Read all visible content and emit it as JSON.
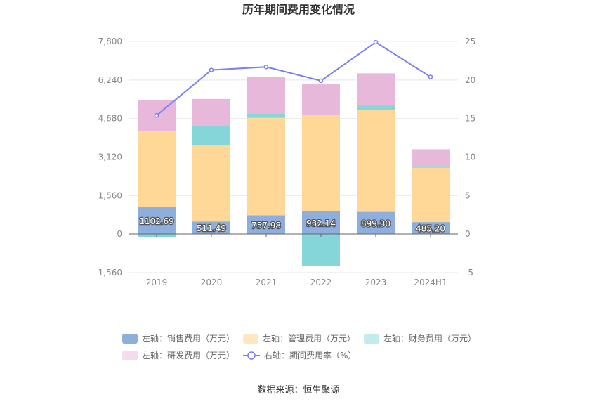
{
  "chart_data": {
    "type": "bar",
    "title": "历年期间费用变化情况",
    "source": "数据来源：恒生聚源",
    "categories": [
      "2019",
      "2020",
      "2021",
      "2022",
      "2023",
      "2024H1"
    ],
    "left_axis": {
      "min": -1560,
      "max": 7800,
      "ticks": [
        "-1,560",
        "0",
        "1,560",
        "3,120",
        "4,680",
        "6,240",
        "7,800"
      ],
      "tick_values": [
        -1560,
        0,
        1560,
        3120,
        4680,
        6240,
        7800
      ]
    },
    "right_axis": {
      "min": -5,
      "max": 25,
      "ticks": [
        "-5",
        "0",
        "5",
        "10",
        "15",
        "20",
        "25"
      ],
      "tick_values": [
        -5,
        0,
        5,
        10,
        15,
        20,
        25
      ]
    },
    "series": [
      {
        "name": "左轴：销售费用（万元）",
        "color": "#8eaedd",
        "values": [
          1102.69,
          511.49,
          757.98,
          932.14,
          899.3,
          485.2
        ],
        "labels": [
          "1102.69",
          "511.49",
          "757.98",
          "932.14",
          "899.30",
          "485.20"
        ]
      },
      {
        "name": "左轴：管理费用（万元）",
        "color": "#ffd898",
        "values": [
          3050,
          3100,
          3950,
          3900,
          4120,
          2200
        ]
      },
      {
        "name": "左轴：财务费用（万元）",
        "color": "#84d6d9",
        "values": [
          -130,
          760,
          180,
          -1280,
          190,
          70
        ]
      },
      {
        "name": "左轴：研发费用（万元）",
        "color": "#e8b8da",
        "values": [
          1260,
          1100,
          1480,
          1250,
          1300,
          680
        ]
      }
    ],
    "line": {
      "name": "右轴：期间费用率（%）",
      "color": "#7b7ff0",
      "values": [
        15.4,
        21.3,
        21.7,
        19.9,
        24.9,
        20.4
      ]
    }
  }
}
